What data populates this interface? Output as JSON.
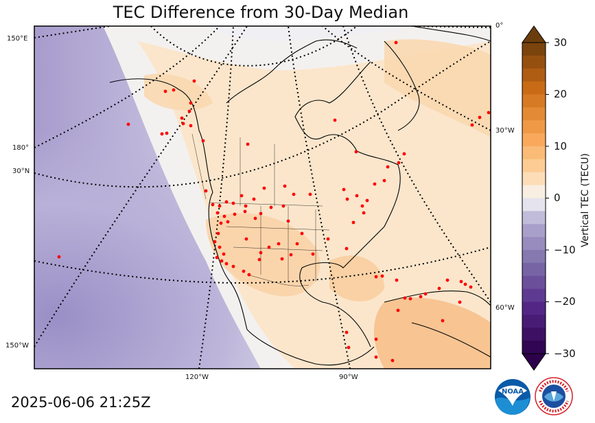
{
  "title": "TEC Difference from 30-Day Median",
  "timestamp": "2025-06-06 21:25Z",
  "colorbar": {
    "label": "Vertical TEC (TECU)",
    "ticks": [
      "30",
      "20",
      "10",
      "0",
      "−10",
      "−20",
      "−30"
    ],
    "min": -30,
    "max": 30,
    "colormap": "purple-white-orange (PuOr)",
    "extend": "both"
  },
  "grid_labels": {
    "left": [
      "150°E",
      "180°",
      "30°N",
      "150°W"
    ],
    "right": [
      "0°",
      "30°W",
      "60°W"
    ],
    "bottom": [
      "120°W",
      "90°W"
    ]
  },
  "logos": {
    "noaa": "NOAA",
    "nws": "NATIONAL WEATHER SERVICE"
  },
  "colors": {
    "positive": "#f5b26b",
    "negative": "#8c80b8",
    "neutral": "#f4f4f4",
    "stations": "#ff0000"
  }
}
